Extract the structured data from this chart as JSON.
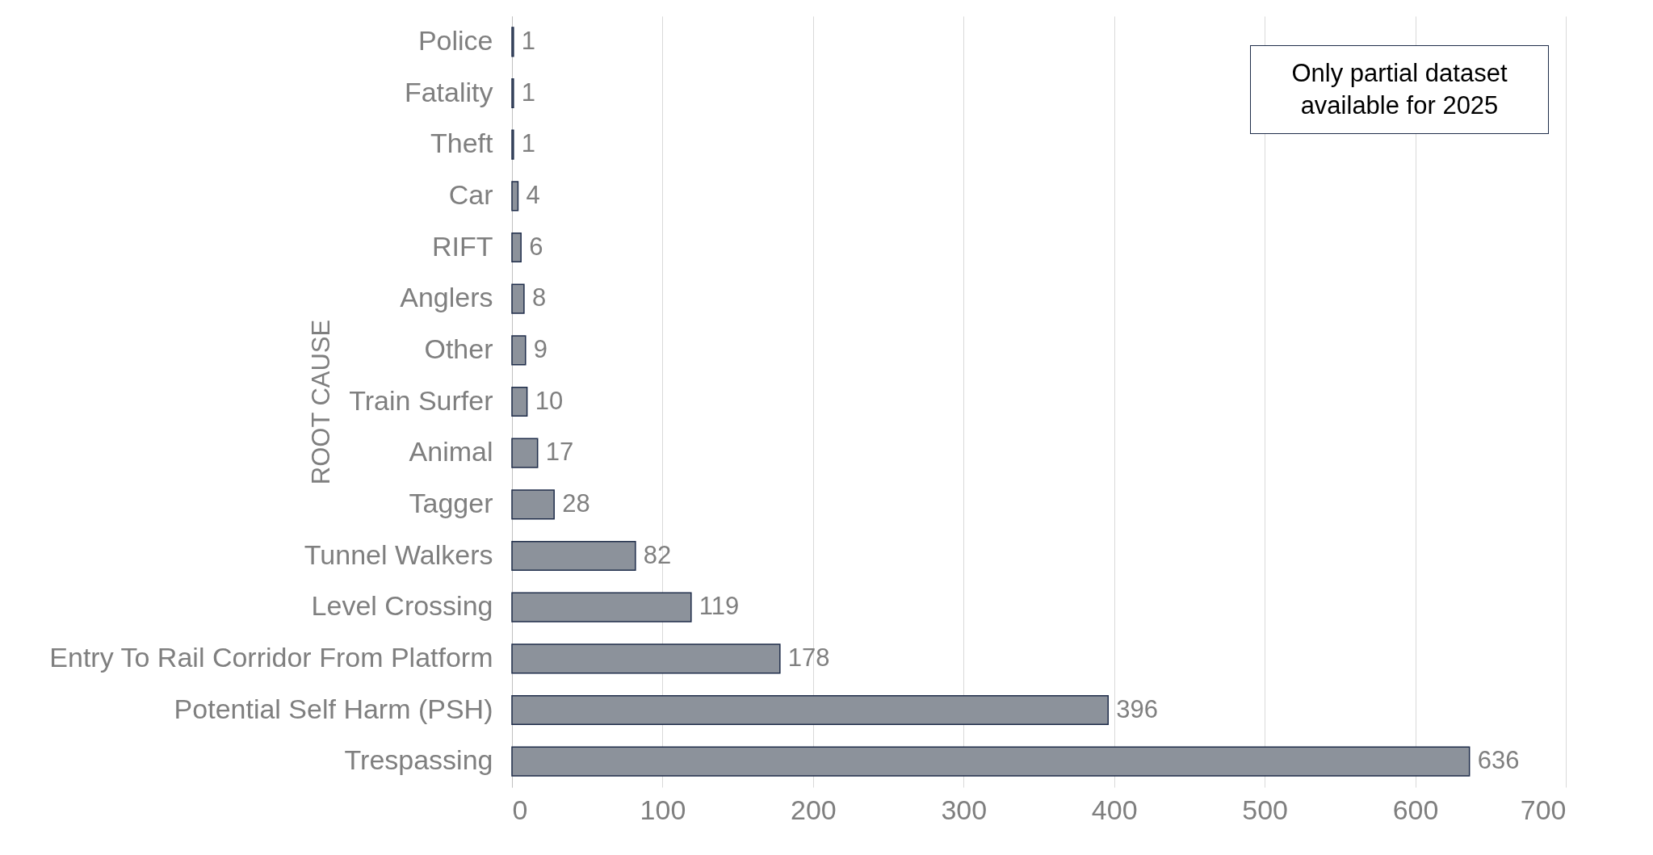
{
  "chart_data": {
    "type": "bar",
    "orientation": "horizontal",
    "ylabel": "ROOT CAUSE",
    "categories": [
      "Police",
      "Fatality",
      "Theft",
      "Car",
      "RIFT",
      "Anglers",
      "Other",
      "Train Surfer",
      "Animal",
      "Tagger",
      "Tunnel Walkers",
      "Level Crossing",
      "Entry To Rail Corridor From Platform",
      "Potential Self Harm (PSH)",
      "Trespassing"
    ],
    "values": [
      1,
      1,
      1,
      4,
      6,
      8,
      9,
      10,
      17,
      28,
      82,
      119,
      178,
      396,
      636
    ],
    "color": "#8c929b",
    "xlim": [
      0,
      700
    ],
    "xticks": [
      0,
      100,
      200,
      300,
      400,
      500,
      600,
      700
    ],
    "grid": "x",
    "data_labels": true,
    "annotations": [
      "Only partial dataset available for 2025"
    ]
  }
}
